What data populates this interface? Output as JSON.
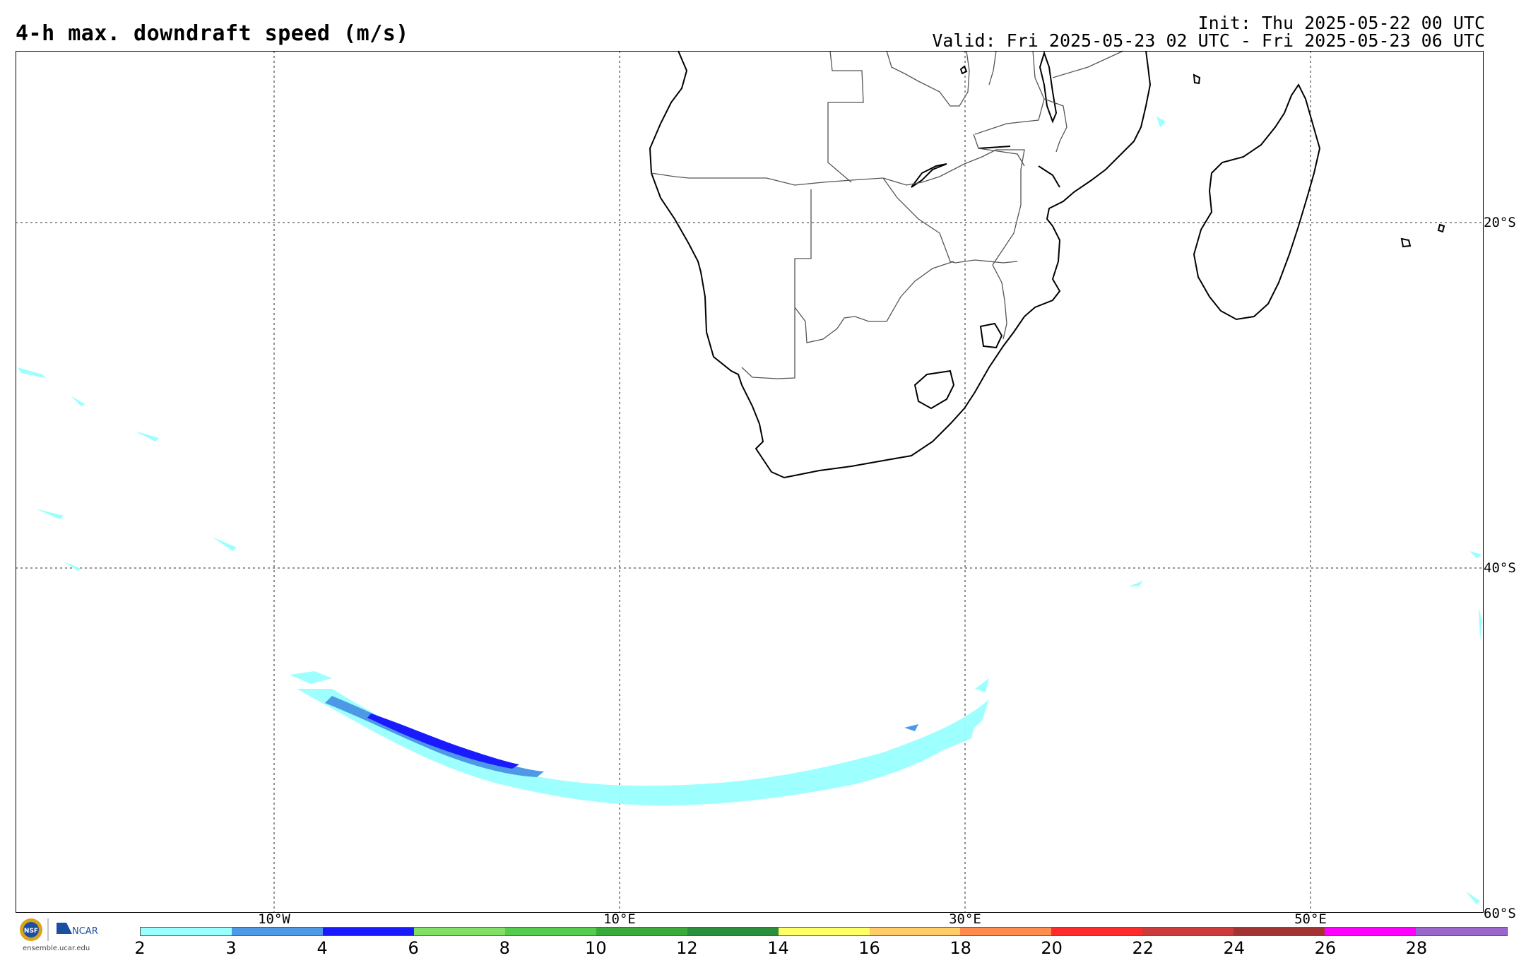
{
  "header": {
    "title": "4-h max. downdraft speed (m/s)",
    "init": "Init: Thu 2025-05-22 00 UTC",
    "valid": "Valid: Fri 2025-05-23 02 UTC - Fri 2025-05-23 06 UTC"
  },
  "grid": {
    "lat_labels": [
      "20°S",
      "40°S",
      "60°S"
    ],
    "lon_labels": [
      "10°W",
      "10°E",
      "30°E",
      "50°E"
    ]
  },
  "colorbar": {
    "ticks": [
      "2",
      "3",
      "4",
      "6",
      "8",
      "10",
      "12",
      "14",
      "16",
      "18",
      "20",
      "22",
      "24",
      "26",
      "28"
    ],
    "colors": [
      "#99ffff",
      "#4d99e6",
      "#1a1aff",
      "#80e066",
      "#55cc4d",
      "#3aaa3a",
      "#2a8f3a",
      "#ffff66",
      "#ffcc66",
      "#ff8c4d",
      "#ff2a2a",
      "#cc3a3a",
      "#a33333",
      "#ff00ff",
      "#9966cc"
    ]
  },
  "logo": {
    "nsf": "NSF",
    "ncar": "NCAR",
    "site": "ensemble.ucar.edu"
  },
  "map": {
    "land_stroke": "#000000",
    "downdraft_colors": {
      "light": "#99ffff",
      "mid": "#4d99e6",
      "dark": "#1a1aff"
    }
  }
}
